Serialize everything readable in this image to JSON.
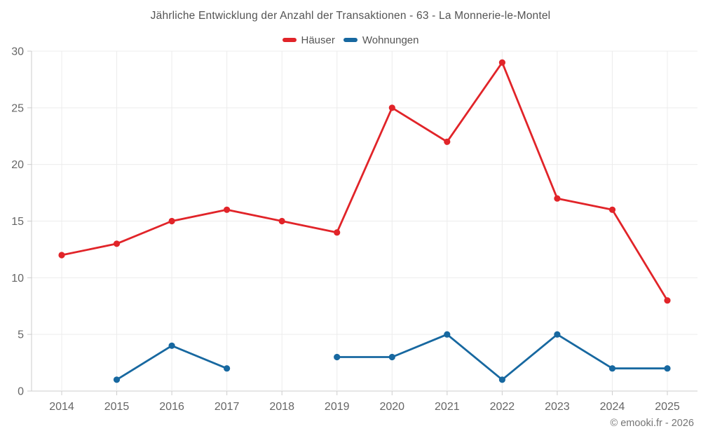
{
  "chart_data": {
    "type": "line",
    "title": "Jährliche Entwicklung der Anzahl der Transaktionen - 63 - La Monnerie-le-Montel",
    "categories": [
      "2014",
      "2015",
      "2016",
      "2017",
      "2018",
      "2019",
      "2020",
      "2021",
      "2022",
      "2023",
      "2024",
      "2025"
    ],
    "series": [
      {
        "name": "Häuser",
        "color": "#e12429",
        "values": [
          12,
          13,
          15,
          16,
          15,
          14,
          25,
          22,
          29,
          17,
          16,
          8
        ]
      },
      {
        "name": "Wohnungen",
        "color": "#1768a0",
        "values": [
          null,
          1,
          4,
          2,
          null,
          3,
          3,
          5,
          1,
          5,
          2,
          2
        ]
      }
    ],
    "xlabel": "",
    "ylabel": "",
    "ylim": [
      0,
      30
    ],
    "yticks": [
      0,
      5,
      10,
      15,
      20,
      25,
      30
    ],
    "grid": true,
    "legend_position": "top"
  },
  "colors": {
    "grid": "#ececec",
    "axis": "#cccccc",
    "tick_label": "#666666"
  },
  "footer": {
    "credit": "© emooki.fr - 2026"
  }
}
